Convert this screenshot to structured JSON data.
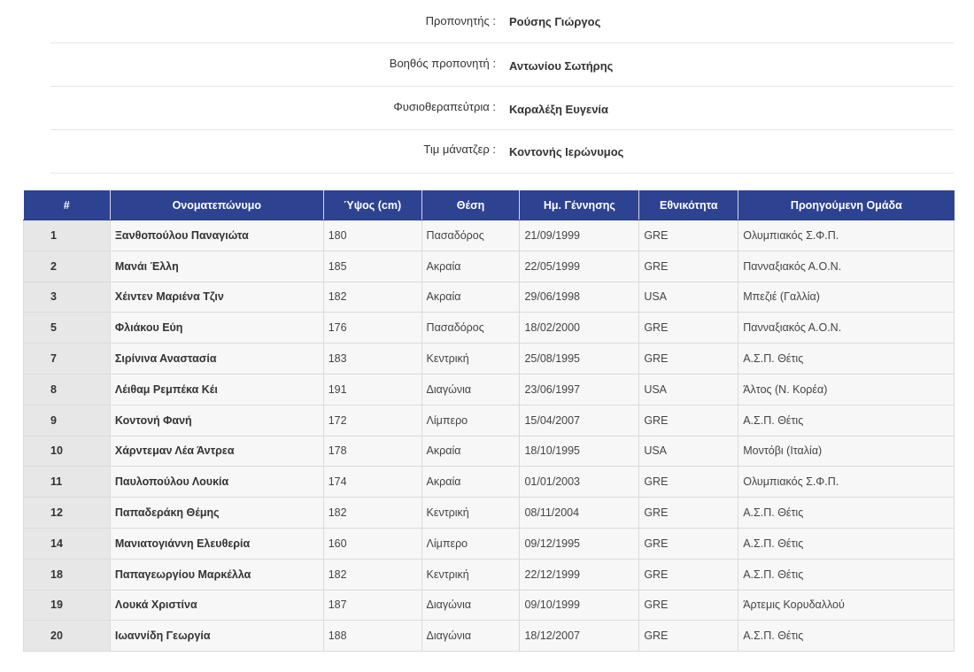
{
  "staff": [
    {
      "label": "Προπονητής :",
      "value": "Ρούσης Γιώργος"
    },
    {
      "label": "Βοηθός προπονητή :",
      "value": "Αντωνίου Σωτήρης"
    },
    {
      "label": "Φυσιοθεραπεύτρια :",
      "value": "Καραλέξη Ευγενία"
    },
    {
      "label": "Τιμ μάνατζερ :",
      "value": "Κοντονής Ιερώνυμος"
    }
  ],
  "table": {
    "headers": [
      "#",
      "Ονοματεπώνυμο",
      "Ύψος (cm)",
      "Θέση",
      "Ημ. Γέννησης",
      "Εθνικότητα",
      "Προηγούμενη Ομάδα"
    ],
    "rows": [
      {
        "num": "1",
        "name": "Ξανθοπούλου Παναγιώτα",
        "height": "180",
        "position": "Πασαδόρος",
        "birth": "21/09/1999",
        "nationality": "GRE",
        "prev_team": "Ολυμπιακός Σ.Φ.Π."
      },
      {
        "num": "2",
        "name": "Μανάι Έλλη",
        "height": "185",
        "position": "Ακραία",
        "birth": "22/05/1999",
        "nationality": "GRE",
        "prev_team": "Πανναξιακός Α.Ο.Ν."
      },
      {
        "num": "3",
        "name": "Χέιντεν Μαριένα Τζιν",
        "height": "182",
        "position": "Ακραία",
        "birth": "29/06/1998",
        "nationality": "USA",
        "prev_team": "Μπεζιέ (Γαλλία)"
      },
      {
        "num": "5",
        "name": "Φλιάκου Εύη",
        "height": "176",
        "position": "Πασαδόρος",
        "birth": "18/02/2000",
        "nationality": "GRE",
        "prev_team": "Πανναξιακός Α.Ο.Ν."
      },
      {
        "num": "7",
        "name": "Σιρίνινα Αναστασία",
        "height": "183",
        "position": "Κεντρική",
        "birth": "25/08/1995",
        "nationality": "GRE",
        "prev_team": "Α.Σ.Π. Θέτις"
      },
      {
        "num": "8",
        "name": "Λέιθαμ Ρεμπέκα Κέι",
        "height": "191",
        "position": "Διαγώνια",
        "birth": "23/06/1997",
        "nationality": "USA",
        "prev_team": "Άλτος (Ν. Κορέα)"
      },
      {
        "num": "9",
        "name": "Κοντονή Φανή",
        "height": "172",
        "position": "Λίμπερο",
        "birth": "15/04/2007",
        "nationality": "GRE",
        "prev_team": "Α.Σ.Π. Θέτις"
      },
      {
        "num": "10",
        "name": "Χάρντεμαν Λέα Άντρεα",
        "height": "178",
        "position": "Ακραία",
        "birth": "18/10/1995",
        "nationality": "USA",
        "prev_team": "Μοντόβι (Ιταλία)"
      },
      {
        "num": "11",
        "name": "Παυλοπούλου Λουκία",
        "height": "174",
        "position": "Ακραία",
        "birth": "01/01/2003",
        "nationality": "GRE",
        "prev_team": "Ολυμπιακός Σ.Φ.Π."
      },
      {
        "num": "12",
        "name": "Παπαδεράκη Θέμης",
        "height": "182",
        "position": "Κεντρική",
        "birth": "08/11/2004",
        "nationality": "GRE",
        "prev_team": "Α.Σ.Π. Θέτις"
      },
      {
        "num": "14",
        "name": "Μανιατογιάννη Ελευθερία",
        "height": "160",
        "position": "Λίμπερο",
        "birth": "09/12/1995",
        "nationality": "GRE",
        "prev_team": "Α.Σ.Π. Θέτις"
      },
      {
        "num": "18",
        "name": "Παπαγεωργίου Μαρκέλλα",
        "height": "182",
        "position": "Κεντρική",
        "birth": "22/12/1999",
        "nationality": "GRE",
        "prev_team": "Α.Σ.Π. Θέτις"
      },
      {
        "num": "19",
        "name": "Λουκά Χριστίνα",
        "height": "187",
        "position": "Διαγώνια",
        "birth": "09/10/1999",
        "nationality": "GRE",
        "prev_team": "Άρτεμις Κορυδαλλού"
      },
      {
        "num": "20",
        "name": "Ιωαννίδη Γεωργία",
        "height": "188",
        "position": "Διαγώνια",
        "birth": "18/12/2007",
        "nationality": "GRE",
        "prev_team": "Α.Σ.Π. Θέτις"
      }
    ]
  },
  "colors": {
    "header_bg": "#2d4291",
    "header_text": "#ffffff",
    "cell_bg": "#f7f7f7",
    "num_cell_bg": "#e7e7e7"
  }
}
